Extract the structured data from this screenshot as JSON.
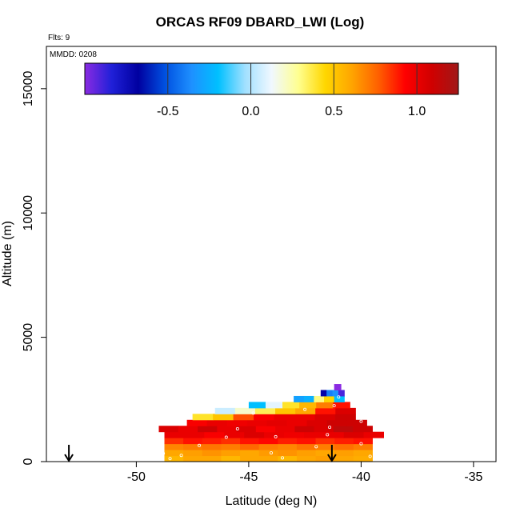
{
  "chart_data": {
    "type": "heatmap",
    "title": "ORCAS RF09 DBARD_LWI (Log)",
    "flights_note": "Flts: 9",
    "date_note": "MMDD: 0208",
    "xlabel": "Latitude (deg N)",
    "ylabel": "Altitude (m)",
    "xlim": [
      -54,
      -34
    ],
    "ylim": [
      0,
      16700
    ],
    "x_ticks": [
      -50,
      -45,
      -40,
      -35
    ],
    "y_ticks": [
      0,
      5000,
      10000,
      15000
    ],
    "colorbar": {
      "range": [
        -1.0,
        1.25
      ],
      "ticks": [
        -0.5,
        0.0,
        0.5,
        1.0
      ],
      "tick_labels": [
        "-0.5",
        "0.0",
        "0.5",
        "1.0"
      ],
      "colors": [
        "#8a2be2",
        "#2020d8",
        "#0000a0",
        "#0050e0",
        "#1e90ff",
        "#00c0ff",
        "#a0e0ff",
        "#f0f8ff",
        "#ffff90",
        "#ffd700",
        "#ffa500",
        "#ff6000",
        "#ff0000",
        "#d00000",
        "#a01818"
      ]
    },
    "legend_position": "top",
    "grid": false,
    "arrow_markers_lat": [
      -53.0,
      -41.3
    ],
    "rows": [
      {
        "y0": 0,
        "y1": 240,
        "x0": -48.75,
        "x1": -39.5,
        "values": [
          0.55,
          0.6,
          0.6,
          0.55,
          0.6,
          0.6,
          0.55,
          0.6,
          0.62,
          0.6,
          0.58
        ]
      },
      {
        "y0": 240,
        "y1": 480,
        "x0": -48.75,
        "x1": -39.5,
        "values": [
          0.6,
          0.62,
          0.65,
          0.62,
          0.6,
          0.63,
          0.65,
          0.62,
          0.6,
          0.62,
          0.6
        ]
      },
      {
        "y0": 480,
        "y1": 720,
        "x0": -48.75,
        "x1": -39.5,
        "values": [
          0.68,
          0.7,
          0.72,
          0.7,
          0.75,
          0.7,
          0.68,
          0.72,
          0.7,
          0.73,
          0.7
        ]
      },
      {
        "y0": 720,
        "y1": 960,
        "x0": -48.75,
        "x1": -39.5,
        "values": [
          0.85,
          0.9,
          0.88,
          0.85,
          0.9,
          0.92,
          0.88,
          0.9,
          0.85,
          0.88,
          0.9
        ]
      },
      {
        "y0": 960,
        "y1": 1200,
        "x0": -48.75,
        "x1": -39.0,
        "values": [
          1.0,
          1.0,
          0.95,
          1.0,
          1.05,
          1.0,
          0.98,
          1.0,
          1.0,
          1.05,
          1.0
        ]
      },
      {
        "y0": 1200,
        "y1": 1440,
        "x0": -49.0,
        "x1": -39.5,
        "values": [
          1.05,
          1.0,
          1.1,
          1.0,
          1.05,
          0.95,
          1.0,
          1.1,
          1.05,
          1.15,
          1.1
        ]
      },
      {
        "y0": 1440,
        "y1": 1680,
        "x0": -47.75,
        "x1": -39.75,
        "values": [
          0.95,
          1.0,
          0.98,
          1.0,
          1.02,
          1.0,
          1.05,
          1.1,
          1.1
        ]
      },
      {
        "y0": 1680,
        "y1": 1920,
        "x0": -47.5,
        "x1": -40.25,
        "values": [
          0.4,
          0.5,
          0.8,
          0.95,
          1.0,
          1.0,
          1.05,
          1.1
        ]
      },
      {
        "y0": 1920,
        "y1": 2160,
        "x0": -46.5,
        "x1": -40.25,
        "values": [
          0.05,
          0.2,
          0.35,
          0.5,
          0.6,
          0.9,
          1.05
        ]
      },
      {
        "y0": 2160,
        "y1": 2400,
        "x0": -45.0,
        "x1": -40.5,
        "values": [
          -0.2,
          0.1,
          0.4,
          0.55,
          0.7,
          0.9
        ]
      },
      {
        "y0": 2400,
        "y1": 2640,
        "x0": -43.0,
        "x1": -40.75,
        "values": [
          -0.3,
          -0.25,
          0.3,
          0.45,
          -0.2
        ]
      },
      {
        "y0": 2640,
        "y1": 2880,
        "x0": -41.8,
        "x1": -40.75,
        "values": [
          -0.7,
          -0.4,
          -0.35,
          -0.9
        ]
      },
      {
        "y0": 2880,
        "y1": 3120,
        "x0": -41.2,
        "x1": -40.9,
        "values": [
          -1.0
        ]
      }
    ],
    "sample_points": [
      [
        -48.5,
        120
      ],
      [
        -48.0,
        250
      ],
      [
        -47.2,
        650
      ],
      [
        -46.0,
        980
      ],
      [
        -45.5,
        1320
      ],
      [
        -44.8,
        1950
      ],
      [
        -44.0,
        350
      ],
      [
        -43.8,
        1000
      ],
      [
        -43.5,
        150
      ],
      [
        -42.5,
        2100
      ],
      [
        -41.5,
        1080
      ],
      [
        -41.2,
        2250
      ],
      [
        -41.4,
        1380
      ],
      [
        -41.0,
        2600
      ],
      [
        -40.0,
        1620
      ],
      [
        -40.0,
        720
      ],
      [
        -39.6,
        210
      ],
      [
        -39.4,
        580
      ],
      [
        -48.8,
        330
      ],
      [
        -42.0,
        600
      ]
    ]
  }
}
